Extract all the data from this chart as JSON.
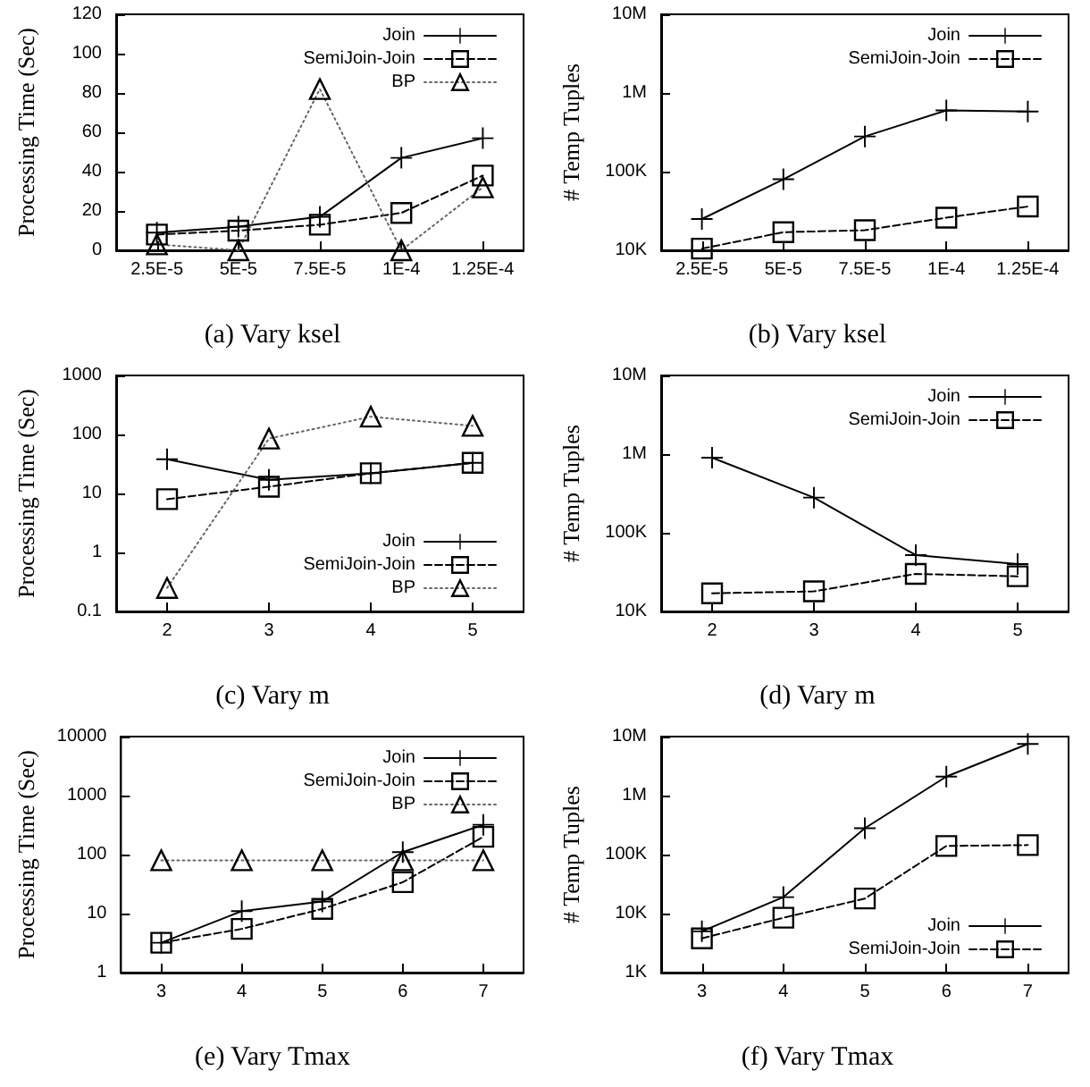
{
  "chart_data": [
    {
      "type": "line",
      "title": "(a) Vary ksel",
      "ylabel": "Processing Time (Sec)",
      "categories": [
        "2.5E-5",
        "5E-5",
        "7.5E-5",
        "1E-4",
        "1.25E-4"
      ],
      "ylim": [
        0,
        120
      ],
      "yticks": [
        0,
        20,
        40,
        60,
        80,
        100,
        120
      ],
      "grid": false,
      "legend": "top right",
      "series": [
        {
          "name": "Join",
          "color": "#000000",
          "marker": "cross",
          "line_style": "solid",
          "values": [
            9,
            12,
            17,
            47,
            57
          ]
        },
        {
          "name": "SemiJoin-Join",
          "color": "#000000",
          "marker": "square",
          "line_style": "dashed",
          "values": [
            8,
            10,
            13,
            19,
            38
          ]
        },
        {
          "name": "BP",
          "color": "#666666",
          "marker": "triangle",
          "line_style": "dotted",
          "values": [
            3,
            0,
            82,
            0,
            32
          ]
        }
      ]
    },
    {
      "type": "line",
      "title": "(b) Vary ksel",
      "ylabel": "# Temp Tuples",
      "categories": [
        "2.5E-5",
        "5E-5",
        "7.5E-5",
        "1E-4",
        "1.25E-4"
      ],
      "log": true,
      "ylim": [
        10000,
        10000000
      ],
      "yticks": [
        {
          "value": 10000,
          "label": "10K"
        },
        {
          "value": 100000,
          "label": "100K"
        },
        {
          "value": 1000000,
          "label": "1M"
        },
        {
          "value": 10000000,
          "label": "10M"
        }
      ],
      "grid": false,
      "legend": "top right",
      "series": [
        {
          "name": "Join",
          "color": "#000000",
          "marker": "cross",
          "line_style": "solid",
          "values": [
            25000,
            80000,
            280000,
            600000,
            580000
          ]
        },
        {
          "name": "SemiJoin-Join",
          "color": "#000000",
          "marker": "square",
          "line_style": "dashed",
          "values": [
            10500,
            17000,
            18000,
            26000,
            36000
          ]
        }
      ]
    },
    {
      "type": "line",
      "title": "(c) Vary m",
      "ylabel": "Processing Time (Sec)",
      "categories": [
        "2",
        "3",
        "4",
        "5"
      ],
      "log": true,
      "ylim": [
        0.1,
        1000
      ],
      "yticks": [
        0.1,
        1,
        10,
        100,
        1000
      ],
      "grid": false,
      "legend": "bottom right",
      "series": [
        {
          "name": "Join",
          "color": "#000000",
          "marker": "cross",
          "line_style": "solid",
          "values": [
            38,
            17,
            22,
            33
          ]
        },
        {
          "name": "SemiJoin-Join",
          "color": "#000000",
          "marker": "square",
          "line_style": "dashed",
          "values": [
            8,
            13,
            22,
            33
          ]
        },
        {
          "name": "BP",
          "color": "#666666",
          "marker": "triangle",
          "line_style": "dotted",
          "values": [
            0.25,
            85,
            200,
            140
          ]
        }
      ]
    },
    {
      "type": "line",
      "title": "(d) Vary m",
      "ylabel": "# Temp Tuples",
      "categories": [
        "2",
        "3",
        "4",
        "5"
      ],
      "log": true,
      "ylim": [
        10000,
        10000000
      ],
      "yticks": [
        {
          "value": 10000,
          "label": "10K"
        },
        {
          "value": 100000,
          "label": "100K"
        },
        {
          "value": 1000000,
          "label": "1M"
        },
        {
          "value": 10000000,
          "label": "10M"
        }
      ],
      "grid": false,
      "legend": "top right",
      "series": [
        {
          "name": "Join",
          "color": "#000000",
          "marker": "cross",
          "line_style": "solid",
          "values": [
            900000,
            280000,
            52000,
            40000
          ]
        },
        {
          "name": "SemiJoin-Join",
          "color": "#000000",
          "marker": "square",
          "line_style": "dashed",
          "values": [
            17000,
            18000,
            30000,
            28000
          ]
        }
      ]
    },
    {
      "type": "line",
      "title": "(e) Vary Tmax",
      "ylabel": "Processing Time (Sec)",
      "categories": [
        "3",
        "4",
        "5",
        "6",
        "7"
      ],
      "log": true,
      "ylim": [
        1,
        10000
      ],
      "yticks": [
        1,
        10,
        100,
        1000,
        10000
      ],
      "grid": false,
      "legend": "top right",
      "series": [
        {
          "name": "Join",
          "color": "#000000",
          "marker": "cross",
          "line_style": "solid",
          "values": [
            3.2,
            11,
            16,
            110,
            320
          ]
        },
        {
          "name": "SemiJoin-Join",
          "color": "#000000",
          "marker": "square",
          "line_style": "dashed",
          "values": [
            3.2,
            5.5,
            12,
            34,
            200
          ]
        },
        {
          "name": "BP",
          "color": "#666666",
          "marker": "triangle",
          "line_style": "dotted",
          "values": [
            80,
            80,
            80,
            80,
            80
          ]
        }
      ]
    },
    {
      "type": "line",
      "title": "(f) Vary Tmax",
      "ylabel": "# Temp Tuples",
      "categories": [
        "3",
        "4",
        "5",
        "6",
        "7"
      ],
      "log": true,
      "ylim": [
        1000,
        10000000
      ],
      "yticks": [
        {
          "value": 1000,
          "label": "1K"
        },
        {
          "value": 10000,
          "label": "10K"
        },
        {
          "value": 100000,
          "label": "100K"
        },
        {
          "value": 1000000,
          "label": "1M"
        },
        {
          "value": 10000000,
          "label": "10M"
        }
      ],
      "grid": false,
      "legend": "bottom right",
      "series": [
        {
          "name": "Join",
          "color": "#000000",
          "marker": "cross",
          "line_style": "solid",
          "values": [
            5000,
            19000,
            280000,
            2100000,
            7500000
          ]
        },
        {
          "name": "SemiJoin-Join",
          "color": "#000000",
          "marker": "square",
          "line_style": "dashed",
          "values": [
            3800,
            8500,
            18000,
            140000,
            145000
          ]
        }
      ]
    }
  ]
}
